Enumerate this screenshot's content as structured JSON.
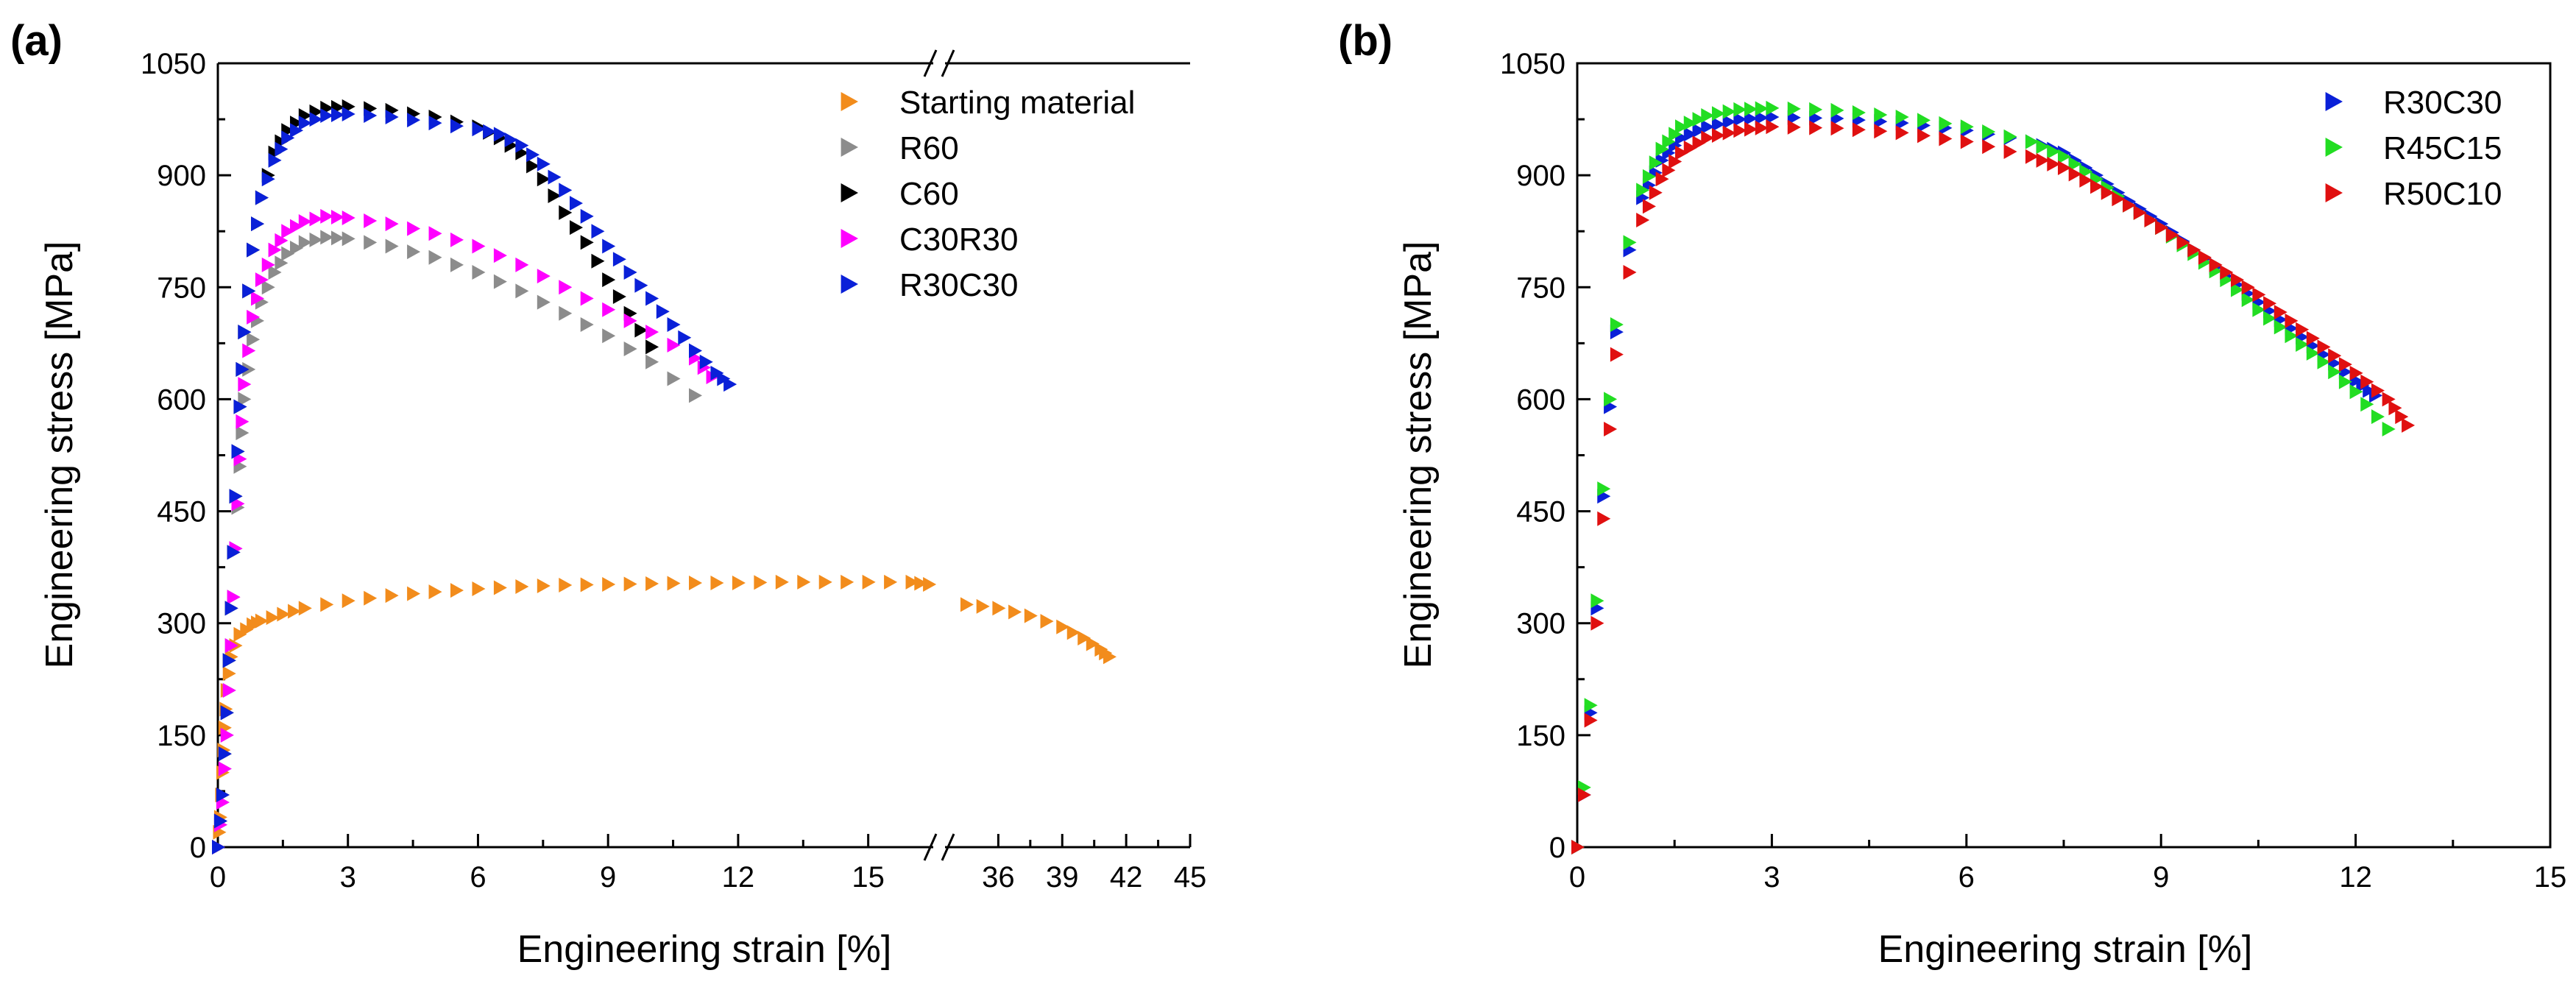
{
  "figure": {
    "panel_a_label": "(a)",
    "panel_b_label": "(b)"
  },
  "chart_data": [
    {
      "type": "scatter",
      "panel": "(a)",
      "xlabel": "Engineering strain [%]",
      "ylabel": "Engineering stress [MPa]",
      "broken_x_axis": true,
      "x_segments": [
        {
          "range": [
            0,
            16.5
          ],
          "ticks": [
            0,
            3,
            6,
            9,
            12,
            15
          ]
        },
        {
          "range": [
            33.5,
            45
          ],
          "ticks": [
            36,
            39,
            42,
            45
          ]
        }
      ],
      "ylim": [
        0,
        1050
      ],
      "yticks": [
        0,
        150,
        300,
        450,
        600,
        750,
        900,
        1050
      ],
      "legend_position": "top-right",
      "marker": "right-triangle",
      "series": [
        {
          "name": "Starting material",
          "color": "#F28C1C",
          "points": [
            [
              0,
              0
            ],
            [
              0.05,
              40
            ],
            [
              0.1,
              100
            ],
            [
              0.15,
              160
            ],
            [
              0.2,
              210
            ],
            [
              0.3,
              255
            ],
            [
              0.5,
              285
            ],
            [
              0.8,
              298
            ],
            [
              1,
              303
            ],
            [
              1.5,
              312
            ],
            [
              2,
              320
            ],
            [
              3,
              330
            ],
            [
              4,
              337
            ],
            [
              5,
              342
            ],
            [
              6,
              346
            ],
            [
              7,
              349
            ],
            [
              8,
              351
            ],
            [
              9,
              352
            ],
            [
              10,
              353
            ],
            [
              11,
              354
            ],
            [
              12,
              354
            ],
            [
              13,
              355
            ],
            [
              14,
              355
            ],
            [
              15,
              355
            ],
            [
              16,
              355
            ],
            [
              16.4,
              352
            ],
            [
              34.5,
              325
            ],
            [
              36,
              320
            ],
            [
              37.5,
              310
            ],
            [
              39,
              295
            ],
            [
              40,
              280
            ],
            [
              40.8,
              265
            ],
            [
              41.2,
              255
            ]
          ]
        },
        {
          "name": "R60",
          "color": "#8C8C8C",
          "points": [
            [
              0,
              0
            ],
            [
              0.1,
              60
            ],
            [
              0.2,
              150
            ],
            [
              0.3,
              270
            ],
            [
              0.4,
              400
            ],
            [
              0.5,
              510
            ],
            [
              0.6,
              600
            ],
            [
              0.8,
              680
            ],
            [
              1,
              730
            ],
            [
              1.3,
              770
            ],
            [
              1.6,
              795
            ],
            [
              2,
              810
            ],
            [
              2.5,
              817
            ],
            [
              3,
              815
            ],
            [
              4,
              805
            ],
            [
              5,
              790
            ],
            [
              6,
              770
            ],
            [
              7,
              745
            ],
            [
              8,
              715
            ],
            [
              9,
              685
            ],
            [
              10,
              650
            ],
            [
              11,
              605
            ]
          ]
        },
        {
          "name": "C60",
          "color": "#000000",
          "points": [
            [
              0,
              0
            ],
            [
              0.1,
              70
            ],
            [
              0.2,
              180
            ],
            [
              0.3,
              320
            ],
            [
              0.4,
              470
            ],
            [
              0.5,
              590
            ],
            [
              0.6,
              690
            ],
            [
              0.8,
              800
            ],
            [
              1,
              870
            ],
            [
              1.3,
              930
            ],
            [
              1.6,
              960
            ],
            [
              2,
              980
            ],
            [
              2.5,
              990
            ],
            [
              3,
              992
            ],
            [
              4,
              987
            ],
            [
              5,
              978
            ],
            [
              6,
              965
            ],
            [
              6.5,
              950
            ],
            [
              7,
              930
            ],
            [
              7.5,
              895
            ],
            [
              8,
              850
            ],
            [
              8.5,
              810
            ],
            [
              9,
              760
            ],
            [
              9.5,
              715
            ],
            [
              10,
              670
            ]
          ]
        },
        {
          "name": "C30R30",
          "color": "#FF00FF",
          "points": [
            [
              0,
              0
            ],
            [
              0.1,
              60
            ],
            [
              0.2,
              150
            ],
            [
              0.3,
              270
            ],
            [
              0.4,
              400
            ],
            [
              0.5,
              520
            ],
            [
              0.6,
              620
            ],
            [
              0.8,
              710
            ],
            [
              1,
              760
            ],
            [
              1.3,
              800
            ],
            [
              1.6,
              825
            ],
            [
              2,
              838
            ],
            [
              2.5,
              845
            ],
            [
              3,
              843
            ],
            [
              4,
              835
            ],
            [
              5,
              822
            ],
            [
              6,
              805
            ],
            [
              7,
              780
            ],
            [
              8,
              750
            ],
            [
              9,
              720
            ],
            [
              10,
              690
            ],
            [
              11,
              655
            ],
            [
              11.4,
              630
            ]
          ]
        },
        {
          "name": "R30C30",
          "color": "#0A20D8",
          "points": [
            [
              0,
              0
            ],
            [
              0.1,
              70
            ],
            [
              0.2,
              180
            ],
            [
              0.3,
              320
            ],
            [
              0.4,
              470
            ],
            [
              0.5,
              590
            ],
            [
              0.6,
              690
            ],
            [
              0.8,
              800
            ],
            [
              1,
              870
            ],
            [
              1.3,
              920
            ],
            [
              1.6,
              950
            ],
            [
              2,
              970
            ],
            [
              2.5,
              980
            ],
            [
              3,
              982
            ],
            [
              4,
              978
            ],
            [
              5,
              970
            ],
            [
              6,
              962
            ],
            [
              6.5,
              955
            ],
            [
              7,
              940
            ],
            [
              7.5,
              915
            ],
            [
              8,
              880
            ],
            [
              8.5,
              845
            ],
            [
              9,
              805
            ],
            [
              9.5,
              770
            ],
            [
              10,
              735
            ],
            [
              10.5,
              700
            ],
            [
              11,
              665
            ],
            [
              11.5,
              635
            ],
            [
              11.8,
              620
            ]
          ]
        }
      ]
    },
    {
      "type": "scatter",
      "panel": "(b)",
      "xlabel": "Engineering strain [%]",
      "ylabel": "Engineering stress [MPa]",
      "xlim": [
        0,
        15
      ],
      "xticks": [
        0,
        3,
        6,
        9,
        12,
        15
      ],
      "ylim": [
        0,
        1050
      ],
      "yticks": [
        0,
        150,
        300,
        450,
        600,
        750,
        900,
        1050
      ],
      "legend_position": "top-right",
      "marker": "right-triangle",
      "series": [
        {
          "name": "R30C30",
          "color": "#0A20D8",
          "points": [
            [
              0,
              0
            ],
            [
              0.1,
              70
            ],
            [
              0.2,
              180
            ],
            [
              0.3,
              320
            ],
            [
              0.4,
              470
            ],
            [
              0.5,
              590
            ],
            [
              0.6,
              690
            ],
            [
              0.8,
              800
            ],
            [
              1,
              870
            ],
            [
              1.3,
              920
            ],
            [
              1.6,
              950
            ],
            [
              2,
              965
            ],
            [
              2.5,
              975
            ],
            [
              3,
              978
            ],
            [
              4,
              976
            ],
            [
              5,
              970
            ],
            [
              6,
              960
            ],
            [
              7,
              945
            ],
            [
              7.5,
              930
            ],
            [
              8,
              900
            ],
            [
              8.5,
              865
            ],
            [
              9,
              835
            ],
            [
              9.5,
              800
            ],
            [
              10,
              765
            ],
            [
              10.5,
              730
            ],
            [
              11,
              695
            ],
            [
              11.5,
              660
            ],
            [
              12,
              625
            ],
            [
              12.3,
              605
            ]
          ]
        },
        {
          "name": "R45C15",
          "color": "#22DD22",
          "points": [
            [
              0,
              0
            ],
            [
              0.1,
              80
            ],
            [
              0.2,
              190
            ],
            [
              0.3,
              330
            ],
            [
              0.4,
              480
            ],
            [
              0.5,
              600
            ],
            [
              0.6,
              700
            ],
            [
              0.8,
              810
            ],
            [
              1,
              880
            ],
            [
              1.3,
              935
            ],
            [
              1.6,
              965
            ],
            [
              2,
              980
            ],
            [
              2.5,
              988
            ],
            [
              3,
              990
            ],
            [
              4,
              987
            ],
            [
              5,
              978
            ],
            [
              6,
              965
            ],
            [
              7,
              945
            ],
            [
              7.5,
              925
            ],
            [
              8,
              895
            ],
            [
              8.5,
              860
            ],
            [
              9,
              830
            ],
            [
              9.5,
              795
            ],
            [
              10,
              760
            ],
            [
              10.5,
              720
            ],
            [
              11,
              685
            ],
            [
              11.5,
              650
            ],
            [
              12,
              610
            ],
            [
              12.5,
              560
            ]
          ]
        },
        {
          "name": "R50C10",
          "color": "#E01010",
          "points": [
            [
              0,
              0
            ],
            [
              0.1,
              70
            ],
            [
              0.2,
              170
            ],
            [
              0.3,
              300
            ],
            [
              0.4,
              440
            ],
            [
              0.5,
              560
            ],
            [
              0.6,
              660
            ],
            [
              0.8,
              770
            ],
            [
              1,
              840
            ],
            [
              1.3,
              895
            ],
            [
              1.6,
              930
            ],
            [
              2,
              950
            ],
            [
              2.5,
              960
            ],
            [
              3,
              965
            ],
            [
              4,
              963
            ],
            [
              5,
              957
            ],
            [
              6,
              945
            ],
            [
              7,
              925
            ],
            [
              7.5,
              910
            ],
            [
              8,
              885
            ],
            [
              8.5,
              860
            ],
            [
              9,
              830
            ],
            [
              9.5,
              800
            ],
            [
              10,
              770
            ],
            [
              10.5,
              740
            ],
            [
              11,
              705
            ],
            [
              11.5,
              670
            ],
            [
              12,
              635
            ],
            [
              12.5,
              600
            ],
            [
              12.8,
              565
            ]
          ]
        }
      ]
    }
  ]
}
